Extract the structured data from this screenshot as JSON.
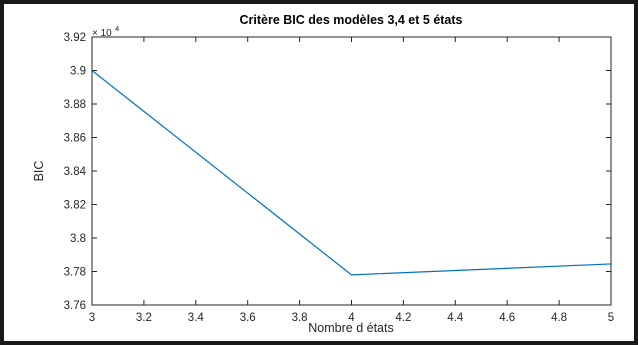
{
  "chart_data": {
    "type": "line",
    "title": "Critère BIC des modèles 3,4 et 5 états",
    "xlabel": "Nombre d états",
    "ylabel": "BIC",
    "y_exponent_prefix": "× 10",
    "y_exponent_power": "4",
    "xlim": [
      3,
      5
    ],
    "ylim": [
      3.76,
      3.92
    ],
    "x_ticks": [
      3,
      3.2,
      3.4,
      3.6,
      3.8,
      4,
      4.2,
      4.4,
      4.6,
      4.8,
      5
    ],
    "x_tick_labels": [
      "3",
      "3.2",
      "3.4",
      "3.6",
      "3.8",
      "4",
      "4.2",
      "4.4",
      "4.6",
      "4.8",
      "5"
    ],
    "y_ticks": [
      3.76,
      3.78,
      3.8,
      3.82,
      3.84,
      3.86,
      3.88,
      3.9,
      3.92
    ],
    "y_tick_labels": [
      "3.76",
      "3.78",
      "3.8",
      "3.82",
      "3.84",
      "3.86",
      "3.88",
      "3.9",
      "3.92"
    ],
    "grid": false,
    "series": [
      {
        "x": [
          3,
          4,
          5
        ],
        "y": [
          3.9,
          3.778,
          3.7845
        ]
      }
    ],
    "colors": {
      "line": "#0072BD",
      "axes": "#262626"
    }
  }
}
